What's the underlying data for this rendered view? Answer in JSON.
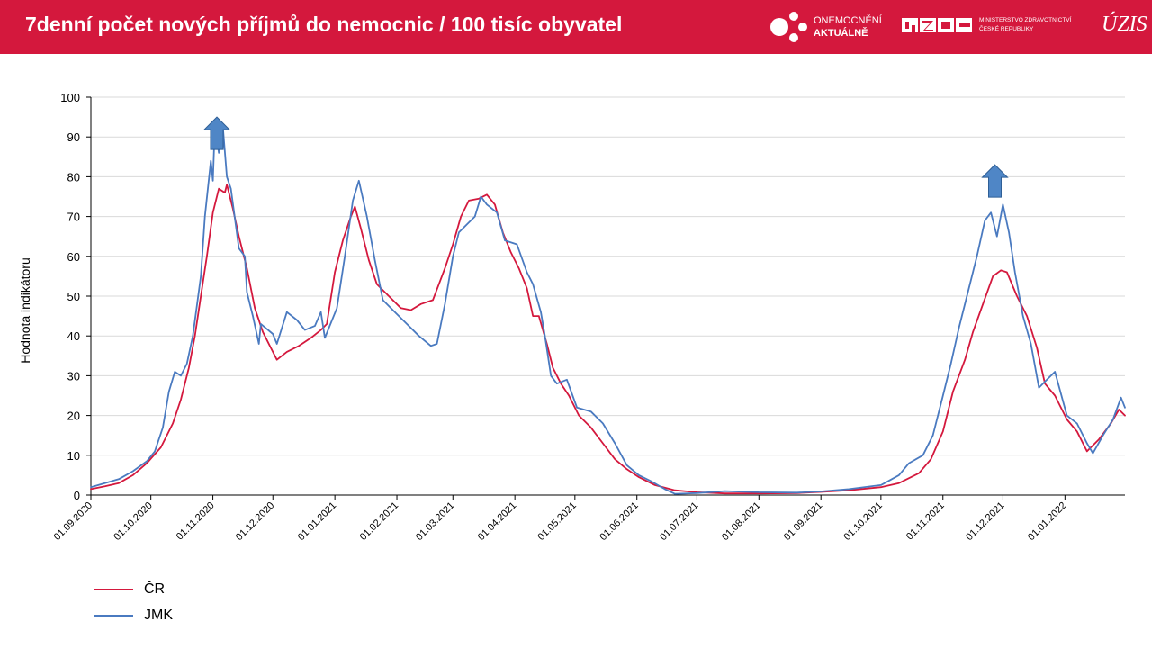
{
  "header": {
    "title": "7denní počet nových příjmů do nemocnic / 100 tisíc obyvatel",
    "logo_oa_line1": "ONEMOCNĚNÍ",
    "logo_oa_line2": "AKTUÁLNĚ",
    "logo_mz_line1": "MINISTERSTVO ZDRAVOTNICTVÍ",
    "logo_mz_line2": "ČESKÉ REPUBLIKY",
    "logo_uzis": "ÚZIS",
    "colors": {
      "bar": "#d4183d",
      "text": "#ffffff"
    }
  },
  "chart_data": {
    "type": "line",
    "title": "",
    "xlabel": "",
    "ylabel": "Hodnota indikátoru",
    "ylim": [
      0,
      100
    ],
    "yticks": [
      0,
      10,
      20,
      30,
      40,
      50,
      60,
      70,
      80,
      90,
      100
    ],
    "xrange": [
      "2020-09-01",
      "2022-01-31"
    ],
    "xticks": [
      {
        "date": "2020-09-01",
        "label": "01.09.2020"
      },
      {
        "date": "2020-10-01",
        "label": "01.10.2020"
      },
      {
        "date": "2020-11-01",
        "label": "01.11.2020"
      },
      {
        "date": "2020-12-01",
        "label": "01.12.2020"
      },
      {
        "date": "2021-01-01",
        "label": "01.01.2021"
      },
      {
        "date": "2021-02-01",
        "label": "01.02.2021"
      },
      {
        "date": "2021-03-01",
        "label": "01.03.2021"
      },
      {
        "date": "2021-04-01",
        "label": "01.04.2021"
      },
      {
        "date": "2021-05-01",
        "label": "01.05.2021"
      },
      {
        "date": "2021-06-01",
        "label": "01.06.2021"
      },
      {
        "date": "2021-07-01",
        "label": "01.07.2021"
      },
      {
        "date": "2021-08-01",
        "label": "01.08.2021"
      },
      {
        "date": "2021-09-01",
        "label": "01.09.2021"
      },
      {
        "date": "2021-10-01",
        "label": "01.10.2021"
      },
      {
        "date": "2021-11-01",
        "label": "01.11.2021"
      },
      {
        "date": "2021-12-01",
        "label": "01.12.2021"
      },
      {
        "date": "2022-01-01",
        "label": "01.01.2022"
      }
    ],
    "grid": true,
    "legend_position": "bottom-left",
    "annotations": [
      {
        "type": "up-arrow",
        "date": "2020-11-03",
        "value": 95
      },
      {
        "type": "up-arrow",
        "date": "2021-11-27",
        "value": 83
      }
    ],
    "series": [
      {
        "name": "ČR",
        "color": "#d4183d",
        "points": [
          [
            "2020-09-01",
            1.5
          ],
          [
            "2020-09-08",
            2.2
          ],
          [
            "2020-09-15",
            3.0
          ],
          [
            "2020-09-22",
            5.0
          ],
          [
            "2020-09-29",
            8.0
          ],
          [
            "2020-10-06",
            12.0
          ],
          [
            "2020-10-12",
            18.0
          ],
          [
            "2020-10-16",
            24.0
          ],
          [
            "2020-10-20",
            32.0
          ],
          [
            "2020-10-23",
            40.0
          ],
          [
            "2020-10-26",
            50.0
          ],
          [
            "2020-10-29",
            60.0
          ],
          [
            "2020-11-01",
            71.0
          ],
          [
            "2020-11-04",
            77.0
          ],
          [
            "2020-11-07",
            76.0
          ],
          [
            "2020-11-08",
            78.0
          ],
          [
            "2020-11-11",
            72.0
          ],
          [
            "2020-11-14",
            65.0
          ],
          [
            "2020-11-18",
            57.0
          ],
          [
            "2020-11-22",
            47.0
          ],
          [
            "2020-11-26",
            41.0
          ],
          [
            "2020-11-30",
            37.0
          ],
          [
            "2020-12-03",
            34.0
          ],
          [
            "2020-12-08",
            36.0
          ],
          [
            "2020-12-14",
            37.5
          ],
          [
            "2020-12-20",
            39.5
          ],
          [
            "2020-12-25",
            41.5
          ],
          [
            "2020-12-28",
            43.0
          ],
          [
            "2021-01-01",
            56.0
          ],
          [
            "2021-01-05",
            64.0
          ],
          [
            "2021-01-09",
            70.0
          ],
          [
            "2021-01-11",
            72.5
          ],
          [
            "2021-01-14",
            67.0
          ],
          [
            "2021-01-18",
            59.0
          ],
          [
            "2021-01-22",
            53.0
          ],
          [
            "2021-01-28",
            50.0
          ],
          [
            "2021-02-03",
            47.0
          ],
          [
            "2021-02-08",
            46.5
          ],
          [
            "2021-02-13",
            48.0
          ],
          [
            "2021-02-19",
            49.0
          ],
          [
            "2021-02-25",
            57.0
          ],
          [
            "2021-03-01",
            63.0
          ],
          [
            "2021-03-05",
            70.0
          ],
          [
            "2021-03-09",
            74.0
          ],
          [
            "2021-03-14",
            74.5
          ],
          [
            "2021-03-18",
            75.5
          ],
          [
            "2021-03-22",
            73.0
          ],
          [
            "2021-03-26",
            66.0
          ],
          [
            "2021-03-30",
            61.0
          ],
          [
            "2021-04-03",
            57.0
          ],
          [
            "2021-04-07",
            52.0
          ],
          [
            "2021-04-10",
            45.0
          ],
          [
            "2021-04-13",
            45.0
          ],
          [
            "2021-04-17",
            38.0
          ],
          [
            "2021-04-20",
            32.0
          ],
          [
            "2021-04-24",
            28.0
          ],
          [
            "2021-04-28",
            25.0
          ],
          [
            "2021-05-03",
            20.0
          ],
          [
            "2021-05-09",
            17.0
          ],
          [
            "2021-05-15",
            13.0
          ],
          [
            "2021-05-21",
            9.0
          ],
          [
            "2021-05-27",
            6.5
          ],
          [
            "2021-06-02",
            4.5
          ],
          [
            "2021-06-10",
            2.5
          ],
          [
            "2021-06-20",
            1.2
          ],
          [
            "2021-07-01",
            0.7
          ],
          [
            "2021-07-15",
            0.4
          ],
          [
            "2021-08-01",
            0.4
          ],
          [
            "2021-08-20",
            0.5
          ],
          [
            "2021-09-01",
            0.8
          ],
          [
            "2021-09-15",
            1.2
          ],
          [
            "2021-10-01",
            2.0
          ],
          [
            "2021-10-10",
            3.0
          ],
          [
            "2021-10-20",
            5.5
          ],
          [
            "2021-10-26",
            9.0
          ],
          [
            "2021-11-01",
            16.0
          ],
          [
            "2021-11-06",
            26.0
          ],
          [
            "2021-11-12",
            34.0
          ],
          [
            "2021-11-16",
            41.0
          ],
          [
            "2021-11-21",
            48.0
          ],
          [
            "2021-11-26",
            55.0
          ],
          [
            "2021-11-30",
            56.5
          ],
          [
            "2021-12-03",
            56.0
          ],
          [
            "2021-12-08",
            50.0
          ],
          [
            "2021-12-13",
            45.0
          ],
          [
            "2021-12-18",
            37.0
          ],
          [
            "2021-12-22",
            28.0
          ],
          [
            "2021-12-27",
            25.0
          ],
          [
            "2022-01-02",
            19.0
          ],
          [
            "2022-01-07",
            16.0
          ],
          [
            "2022-01-12",
            11.0
          ],
          [
            "2022-01-18",
            14.0
          ],
          [
            "2022-01-24",
            18.0
          ],
          [
            "2022-01-28",
            21.5
          ],
          [
            "2022-01-31",
            20.0
          ]
        ]
      },
      {
        "name": "JMK",
        "color": "#4a7ac0",
        "points": [
          [
            "2020-09-01",
            2.0
          ],
          [
            "2020-09-08",
            3.0
          ],
          [
            "2020-09-15",
            4.0
          ],
          [
            "2020-09-22",
            6.0
          ],
          [
            "2020-09-29",
            8.5
          ],
          [
            "2020-10-03",
            11.0
          ],
          [
            "2020-10-07",
            17.0
          ],
          [
            "2020-10-10",
            26.0
          ],
          [
            "2020-10-13",
            31.0
          ],
          [
            "2020-10-16",
            30.0
          ],
          [
            "2020-10-19",
            33.0
          ],
          [
            "2020-10-22",
            40.0
          ],
          [
            "2020-10-26",
            55.0
          ],
          [
            "2020-10-28",
            70.0
          ],
          [
            "2020-10-31",
            84.0
          ],
          [
            "2020-11-01",
            79.0
          ],
          [
            "2020-11-02",
            93.0
          ],
          [
            "2020-11-04",
            86.0
          ],
          [
            "2020-11-05",
            89.0
          ],
          [
            "2020-11-06",
            92.5
          ],
          [
            "2020-11-08",
            80.0
          ],
          [
            "2020-11-10",
            77.0
          ],
          [
            "2020-11-14",
            62.0
          ],
          [
            "2020-11-17",
            60.0
          ],
          [
            "2020-11-18",
            51.0
          ],
          [
            "2020-11-21",
            45.0
          ],
          [
            "2020-11-24",
            38.0
          ],
          [
            "2020-11-25",
            43.0
          ],
          [
            "2020-12-01",
            40.5
          ],
          [
            "2020-12-03",
            38.0
          ],
          [
            "2020-12-08",
            46.0
          ],
          [
            "2020-12-13",
            44.0
          ],
          [
            "2020-12-17",
            41.5
          ],
          [
            "2020-12-22",
            42.5
          ],
          [
            "2020-12-25",
            46.0
          ],
          [
            "2020-12-27",
            39.5
          ],
          [
            "2021-01-02",
            47.0
          ],
          [
            "2021-01-06",
            60.0
          ],
          [
            "2021-01-10",
            74.0
          ],
          [
            "2021-01-13",
            79.0
          ],
          [
            "2021-01-17",
            70.0
          ],
          [
            "2021-01-21",
            59.0
          ],
          [
            "2021-01-25",
            49.0
          ],
          [
            "2021-01-31",
            46.0
          ],
          [
            "2021-02-06",
            43.0
          ],
          [
            "2021-02-12",
            40.0
          ],
          [
            "2021-02-18",
            37.5
          ],
          [
            "2021-02-21",
            38.0
          ],
          [
            "2021-02-25",
            48.0
          ],
          [
            "2021-03-01",
            60.0
          ],
          [
            "2021-03-04",
            66.0
          ],
          [
            "2021-03-08",
            68.0
          ],
          [
            "2021-03-12",
            70.0
          ],
          [
            "2021-03-15",
            75.0
          ],
          [
            "2021-03-18",
            73.0
          ],
          [
            "2021-03-23",
            71.0
          ],
          [
            "2021-03-27",
            64.0
          ],
          [
            "2021-04-02",
            63.0
          ],
          [
            "2021-04-07",
            56.0
          ],
          [
            "2021-04-10",
            53.0
          ],
          [
            "2021-04-14",
            46.0
          ],
          [
            "2021-04-16",
            40.0
          ],
          [
            "2021-04-19",
            30.0
          ],
          [
            "2021-04-22",
            28.0
          ],
          [
            "2021-04-27",
            29.0
          ],
          [
            "2021-05-02",
            22.0
          ],
          [
            "2021-05-09",
            21.0
          ],
          [
            "2021-05-15",
            18.0
          ],
          [
            "2021-05-21",
            13.0
          ],
          [
            "2021-05-27",
            7.5
          ],
          [
            "2021-06-02",
            5.0
          ],
          [
            "2021-06-08",
            3.5
          ],
          [
            "2021-06-15",
            1.5
          ],
          [
            "2021-06-20",
            0.3
          ],
          [
            "2021-07-01",
            0.5
          ],
          [
            "2021-07-15",
            1.0
          ],
          [
            "2021-08-01",
            0.7
          ],
          [
            "2021-08-20",
            0.6
          ],
          [
            "2021-09-01",
            0.9
          ],
          [
            "2021-09-15",
            1.5
          ],
          [
            "2021-10-01",
            2.5
          ],
          [
            "2021-10-10",
            5.0
          ],
          [
            "2021-10-15",
            8.0
          ],
          [
            "2021-10-22",
            10.0
          ],
          [
            "2021-10-27",
            15.0
          ],
          [
            "2021-11-01",
            25.0
          ],
          [
            "2021-11-05",
            33.0
          ],
          [
            "2021-11-09",
            42.0
          ],
          [
            "2021-11-13",
            50.0
          ],
          [
            "2021-11-18",
            60.0
          ],
          [
            "2021-11-22",
            69.0
          ],
          [
            "2021-11-25",
            71.0
          ],
          [
            "2021-11-28",
            65.0
          ],
          [
            "2021-12-01",
            73.0
          ],
          [
            "2021-12-04",
            66.0
          ],
          [
            "2021-12-07",
            56.0
          ],
          [
            "2021-12-11",
            45.0
          ],
          [
            "2021-12-15",
            38.0
          ],
          [
            "2021-12-19",
            27.0
          ],
          [
            "2021-12-23",
            29.0
          ],
          [
            "2021-12-27",
            31.0
          ],
          [
            "2022-01-02",
            20.0
          ],
          [
            "2022-01-07",
            18.0
          ],
          [
            "2022-01-12",
            13.0
          ],
          [
            "2022-01-15",
            10.5
          ],
          [
            "2022-01-20",
            15.0
          ],
          [
            "2022-01-25",
            19.0
          ],
          [
            "2022-01-29",
            24.5
          ],
          [
            "2022-01-31",
            22.0
          ]
        ]
      }
    ]
  }
}
